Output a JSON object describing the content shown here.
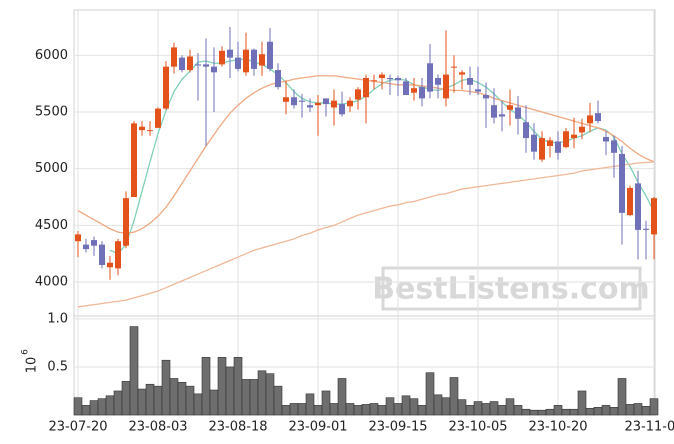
{
  "chart_data": [
    {
      "type": "candlestick",
      "watermark": "BestListens.com",
      "categories": [
        "23-07-20",
        null,
        null,
        null,
        null,
        null,
        null,
        null,
        null,
        null,
        "23-08-03",
        null,
        null,
        null,
        null,
        null,
        null,
        null,
        null,
        null,
        "23-08-18",
        null,
        null,
        null,
        null,
        null,
        null,
        null,
        null,
        null,
        "23-09-01",
        null,
        null,
        null,
        null,
        null,
        null,
        null,
        null,
        null,
        "23-09-15",
        null,
        null,
        null,
        null,
        null,
        null,
        null,
        null,
        null,
        "23-10-05",
        null,
        null,
        null,
        null,
        null,
        null,
        null,
        null,
        null,
        "23-10-20",
        null,
        null,
        null,
        null,
        null,
        null,
        null,
        null,
        null,
        null,
        null,
        "23-11-03"
      ],
      "up_color": "#e4521b",
      "down_color": "#7070b8",
      "ohlc": [
        [
          4360,
          4450,
          4220,
          4420
        ],
        [
          4330,
          4380,
          4260,
          4290
        ],
        [
          4370,
          4400,
          4230,
          4320
        ],
        [
          4330,
          4360,
          4120,
          4150
        ],
        [
          4130,
          4230,
          4020,
          4170
        ],
        [
          4120,
          4380,
          4060,
          4360
        ],
        [
          4320,
          4800,
          4300,
          4740
        ],
        [
          4750,
          5420,
          4750,
          5400
        ],
        [
          5340,
          5420,
          5290,
          5370
        ],
        [
          5340,
          5420,
          5290,
          5340
        ],
        [
          5360,
          5540,
          5360,
          5530
        ],
        [
          5530,
          5950,
          5520,
          5900
        ],
        [
          5900,
          6110,
          5840,
          6070
        ],
        [
          5980,
          6000,
          5850,
          5870
        ],
        [
          5870,
          6050,
          5850,
          5990
        ],
        [
          5920,
          6020,
          5600,
          5910
        ],
        [
          5920,
          6150,
          5200,
          5900
        ],
        [
          5900,
          6070,
          5500,
          5850
        ],
        [
          5920,
          6080,
          5900,
          6040
        ],
        [
          6050,
          6250,
          5800,
          5980
        ],
        [
          5980,
          6120,
          5860,
          5880
        ],
        [
          5850,
          6200,
          5820,
          6050
        ],
        [
          6050,
          6060,
          5820,
          5880
        ],
        [
          5910,
          6120,
          5820,
          6010
        ],
        [
          6120,
          6240,
          5860,
          5880
        ],
        [
          5870,
          5930,
          5700,
          5720
        ],
        [
          5590,
          5780,
          5480,
          5630
        ],
        [
          5630,
          5700,
          5530,
          5560
        ],
        [
          5600,
          5660,
          5450,
          5590
        ],
        [
          5560,
          5620,
          5500,
          5540
        ],
        [
          5560,
          5650,
          5290,
          5580
        ],
        [
          5620,
          5620,
          5460,
          5570
        ],
        [
          5540,
          5700,
          5380,
          5600
        ],
        [
          5570,
          5680,
          5460,
          5480
        ],
        [
          5550,
          5630,
          5500,
          5600
        ],
        [
          5610,
          5720,
          5520,
          5700
        ],
        [
          5630,
          5830,
          5400,
          5800
        ],
        [
          5780,
          5830,
          5700,
          5780
        ],
        [
          5800,
          5850,
          5700,
          5830
        ],
        [
          5800,
          5830,
          5650,
          5790
        ],
        [
          5800,
          5820,
          5640,
          5780
        ],
        [
          5770,
          5800,
          5650,
          5650
        ],
        [
          5670,
          5800,
          5600,
          5710
        ],
        [
          5720,
          5800,
          5550,
          5620
        ],
        [
          5930,
          6100,
          5620,
          5680
        ],
        [
          5800,
          5830,
          5620,
          5740
        ],
        [
          5620,
          6220,
          5550,
          5830
        ],
        [
          5900,
          6000,
          5670,
          5900
        ],
        [
          5830,
          5870,
          5700,
          5850
        ],
        [
          5800,
          5900,
          5650,
          5740
        ],
        [
          5700,
          5900,
          5650,
          5680
        ],
        [
          5650,
          5760,
          5360,
          5620
        ],
        [
          5560,
          5710,
          5400,
          5450
        ],
        [
          5480,
          5600,
          5330,
          5460
        ],
        [
          5520,
          5700,
          5380,
          5560
        ],
        [
          5540,
          5640,
          5300,
          5440
        ],
        [
          5410,
          5560,
          5140,
          5270
        ],
        [
          5300,
          5400,
          5080,
          5150
        ],
        [
          5080,
          5330,
          5060,
          5270
        ],
        [
          5200,
          5280,
          5100,
          5250
        ],
        [
          5240,
          5330,
          5080,
          5140
        ],
        [
          5190,
          5360,
          5180,
          5330
        ],
        [
          5270,
          5450,
          5180,
          5300
        ],
        [
          5320,
          5440,
          5260,
          5370
        ],
        [
          5400,
          5580,
          5320,
          5470
        ],
        [
          5490,
          5600,
          5400,
          5420
        ],
        [
          5280,
          5330,
          5120,
          5240
        ],
        [
          5250,
          5290,
          4920,
          5140
        ],
        [
          5130,
          5200,
          4330,
          4610
        ],
        [
          4590,
          4850,
          4580,
          4830
        ],
        [
          4870,
          4980,
          4200,
          4460
        ],
        [
          4470,
          4540,
          4200,
          4460
        ],
        [
          4420,
          4750,
          4200,
          4740
        ]
      ],
      "series": [
        {
          "color": "#7fd0b8",
          "values": [
            null,
            null,
            null,
            null,
            4280,
            4250,
            4330,
            4540,
            4800,
            5060,
            5310,
            5510,
            5680,
            5790,
            5860,
            5940,
            5950,
            5930,
            5930,
            5950,
            5960,
            5970,
            5940,
            5920,
            5880,
            5830,
            5760,
            5680,
            5620,
            5590,
            5580,
            5580,
            5570,
            5570,
            5580,
            5600,
            5640,
            5700,
            5750,
            5780,
            5790,
            5780,
            5740,
            5720,
            5700,
            5690,
            5710,
            5740,
            5780,
            5790,
            5760,
            5720,
            5660,
            5590,
            5520,
            5480,
            5410,
            5330,
            5260,
            5230,
            5230,
            5240,
            5270,
            5290,
            5330,
            5360,
            5340,
            5280,
            5130,
            5020,
            4880,
            4760,
            4620
          ]
        },
        {
          "color": "#f0a880",
          "values": [
            4630,
            4590,
            4550,
            4510,
            4470,
            4440,
            4430,
            4440,
            4470,
            4520,
            4580,
            4660,
            4760,
            4870,
            4980,
            5090,
            5200,
            5300,
            5400,
            5490,
            5560,
            5620,
            5670,
            5710,
            5740,
            5760,
            5770,
            5790,
            5800,
            5810,
            5820,
            5820,
            5820,
            5810,
            5800,
            5790,
            5780,
            5770,
            5760,
            5750,
            5740,
            5740,
            5740,
            5730,
            5720,
            5710,
            5700,
            5690,
            5690,
            5680,
            5670,
            5650,
            5620,
            5600,
            5580,
            5560,
            5540,
            5520,
            5500,
            5480,
            5460,
            5440,
            5420,
            5400,
            5380,
            5360,
            5330,
            5290,
            5240,
            5180,
            5130,
            5090,
            5060
          ]
        },
        {
          "color": "#f0b898",
          "values": [
            3780,
            3790,
            3800,
            3810,
            3820,
            3830,
            3840,
            3860,
            3880,
            3900,
            3920,
            3950,
            3980,
            4010,
            4040,
            4070,
            4100,
            4130,
            4160,
            4190,
            4220,
            4250,
            4280,
            4300,
            4320,
            4340,
            4360,
            4380,
            4410,
            4430,
            4460,
            4480,
            4500,
            4530,
            4560,
            4590,
            4610,
            4630,
            4650,
            4670,
            4680,
            4700,
            4710,
            4730,
            4750,
            4770,
            4780,
            4800,
            4820,
            4830,
            4840,
            4850,
            4860,
            4870,
            4880,
            4890,
            4900,
            4910,
            4920,
            4930,
            4940,
            4950,
            4960,
            4980,
            4990,
            5000,
            5010,
            5020,
            5030,
            5040,
            5050,
            5055,
            5060
          ]
        }
      ],
      "ylim": [
        3700,
        6400
      ],
      "yticks": [
        4000,
        4500,
        5000,
        5500,
        6000
      ],
      "grid": true
    },
    {
      "type": "bar",
      "color": "#6e6e6e",
      "y_unit": {
        "base": "10",
        "exponent": "6"
      },
      "values": [
        0.18,
        0.1,
        0.15,
        0.17,
        0.2,
        0.25,
        0.35,
        0.92,
        0.27,
        0.32,
        0.3,
        0.57,
        0.38,
        0.34,
        0.3,
        0.22,
        0.6,
        0.26,
        0.6,
        0.5,
        0.6,
        0.37,
        0.37,
        0.46,
        0.43,
        0.3,
        0.1,
        0.12,
        0.12,
        0.22,
        0.1,
        0.25,
        0.12,
        0.38,
        0.12,
        0.1,
        0.11,
        0.12,
        0.1,
        0.18,
        0.12,
        0.2,
        0.17,
        0.1,
        0.44,
        0.21,
        0.18,
        0.39,
        0.16,
        0.1,
        0.14,
        0.12,
        0.14,
        0.1,
        0.17,
        0.1,
        0.06,
        0.05,
        0.05,
        0.06,
        0.1,
        0.06,
        0.06,
        0.25,
        0.07,
        0.08,
        0.1,
        0.08,
        0.38,
        0.11,
        0.12,
        0.09,
        0.17
      ],
      "ylim": [
        0,
        1.03
      ],
      "yticks": [
        0.5,
        {
          "value": 1,
          "label": "1.0"
        }
      ],
      "grid": true
    }
  ]
}
